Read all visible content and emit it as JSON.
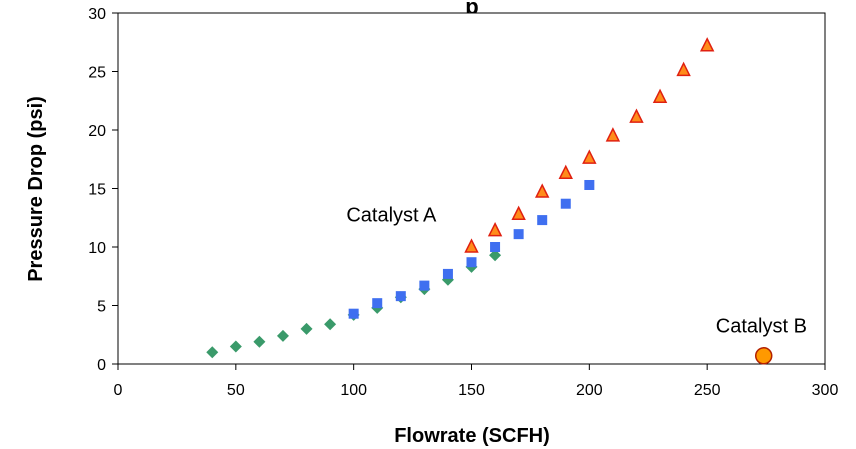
{
  "chart_data": {
    "type": "scatter",
    "title": "",
    "title_partial": "p",
    "xlabel": "Flowrate (SCFH)",
    "ylabel": "Pressure Drop (psi)",
    "xlim": [
      0,
      300
    ],
    "ylim": [
      0,
      30
    ],
    "xticks": [
      0,
      50,
      100,
      150,
      200,
      250,
      300
    ],
    "yticks": [
      0,
      5,
      10,
      15,
      20,
      25,
      30
    ],
    "grid": false,
    "legend": "none",
    "annotations": [
      {
        "text": "Catalyst A",
        "x": 116,
        "y": 12.2
      },
      {
        "text": "Catalyst B",
        "x": 273,
        "y": 2.7
      }
    ],
    "series": [
      {
        "marker": "diamond",
        "color": "#3a9a6a",
        "x": [
          40,
          50,
          60,
          70,
          80,
          90,
          100,
          110,
          120,
          130,
          140,
          150,
          160
        ],
        "y": [
          1.0,
          1.5,
          1.9,
          2.4,
          3.0,
          3.4,
          4.2,
          4.8,
          5.7,
          6.4,
          7.2,
          8.3,
          9.3
        ]
      },
      {
        "marker": "square",
        "color": "#3f6ff0",
        "x": [
          100,
          110,
          120,
          130,
          140,
          150,
          160,
          170,
          180,
          190,
          200
        ],
        "y": [
          4.3,
          5.2,
          5.8,
          6.7,
          7.7,
          8.7,
          10.0,
          11.1,
          12.3,
          13.7,
          15.3
        ]
      },
      {
        "marker": "triangle",
        "color": "#ff8c1a",
        "stroke": "#e02010",
        "x": [
          150,
          160,
          170,
          180,
          190,
          200,
          210,
          220,
          230,
          240,
          250
        ],
        "y": [
          10.0,
          11.4,
          12.8,
          14.7,
          16.3,
          17.6,
          19.5,
          21.1,
          22.8,
          25.1,
          27.2
        ]
      },
      {
        "marker": "circle",
        "color": "#ff9900",
        "stroke": "#b22000",
        "x": [
          274
        ],
        "y": [
          0.7
        ]
      }
    ]
  }
}
